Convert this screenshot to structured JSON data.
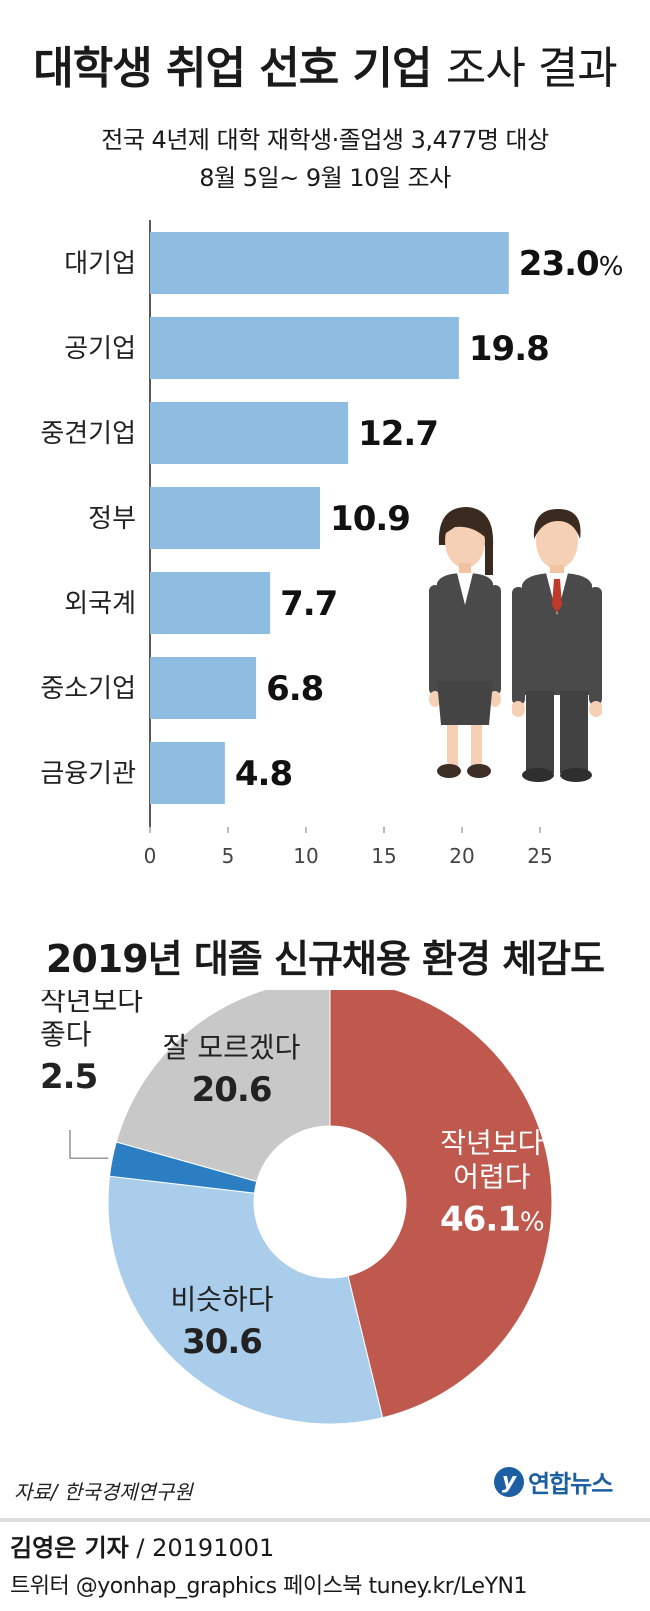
{
  "header": {
    "title_bold": "대학생 취업 선호 기업",
    "title_light": "조사 결과",
    "subtitle_line1": "전국 4년제 대학 재학생·졸업생 3,477명 대상",
    "subtitle_line2": "8월 5일~ 9월 10일 조사"
  },
  "chart_data": [
    {
      "type": "bar",
      "orientation": "horizontal",
      "categories": [
        "대기업",
        "공기업",
        "중견기업",
        "정부",
        "외국계",
        "중소기업",
        "금융기관"
      ],
      "values": [
        23.0,
        19.8,
        12.7,
        10.9,
        7.7,
        6.8,
        4.8
      ],
      "value_labels": [
        "23.0",
        "19.8",
        "12.7",
        "10.9",
        "7.7",
        "6.8",
        "4.8"
      ],
      "first_value_unit": "%",
      "xlim": [
        0,
        25
      ],
      "xticks": [
        0,
        5,
        10,
        15,
        20,
        25
      ],
      "bar_color": "#8fbde2",
      "grid": false
    },
    {
      "type": "pie",
      "donut": true,
      "title": "2019년 대졸 신규채용 환경 체감도",
      "slices": [
        {
          "label_lines": [
            "작년보다",
            "어렵다"
          ],
          "value": 46.1,
          "value_label": "46.1",
          "unit": "%",
          "color": "#c0594d"
        },
        {
          "label_lines": [
            "비슷하다"
          ],
          "value": 30.6,
          "value_label": "30.6",
          "unit": "",
          "color": "#a9cdea"
        },
        {
          "label_lines": [
            "작년보다",
            "좋다"
          ],
          "value": 2.5,
          "value_label": "2.5",
          "unit": "",
          "color": "#2b7ec1"
        },
        {
          "label_lines": [
            "잘 모르겠다"
          ],
          "value": 20.6,
          "value_label": "20.6",
          "unit": "",
          "color": "#c8c8c8"
        }
      ]
    }
  ],
  "footer": {
    "source": "자료/ 한국경제연구원",
    "logo_text": "연합뉴스",
    "reporter_name": "김영은 기자",
    "reporter_date": " / 20191001",
    "social": "트위터 @yonhap_graphics  페이스북 tuney.kr/LeYN1"
  },
  "illustration": {
    "icons": [
      "businesswoman-icon",
      "businessman-icon"
    ],
    "suit_color": "#4a4a4a",
    "tie_color": "#c0392b"
  }
}
